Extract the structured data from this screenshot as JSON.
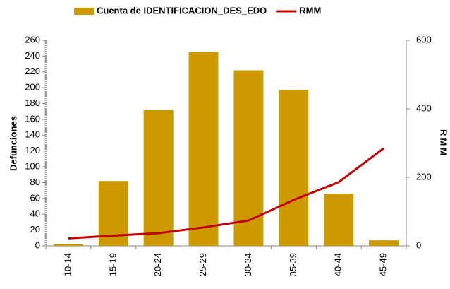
{
  "chart_data": {
    "type": "combo",
    "categories": [
      "10-14",
      "15-19",
      "20-24",
      "25-29",
      "30-34",
      "35-39",
      "40-44",
      "45-49"
    ],
    "series": [
      {
        "name": "Cuenta de IDENTIFICACION_DES_EDO",
        "type": "bar",
        "color": "#CC9900",
        "values": [
          2,
          82,
          172,
          245,
          222,
          197,
          66,
          7
        ]
      },
      {
        "name": "RMM",
        "type": "line",
        "axis": "y2",
        "color": "#C00000",
        "values": [
          22,
          30,
          37,
          54,
          74,
          134,
          186,
          285
        ]
      }
    ],
    "ylabel": "Defunciones",
    "y2label": "RMM",
    "ylim": [
      0,
      260
    ],
    "yticks": [
      0,
      20,
      40,
      60,
      80,
      100,
      120,
      140,
      160,
      180,
      200,
      220,
      240,
      260
    ],
    "y2lim": [
      0,
      600
    ],
    "y2ticks": [
      0,
      200,
      400,
      600
    ],
    "legend": "top"
  }
}
